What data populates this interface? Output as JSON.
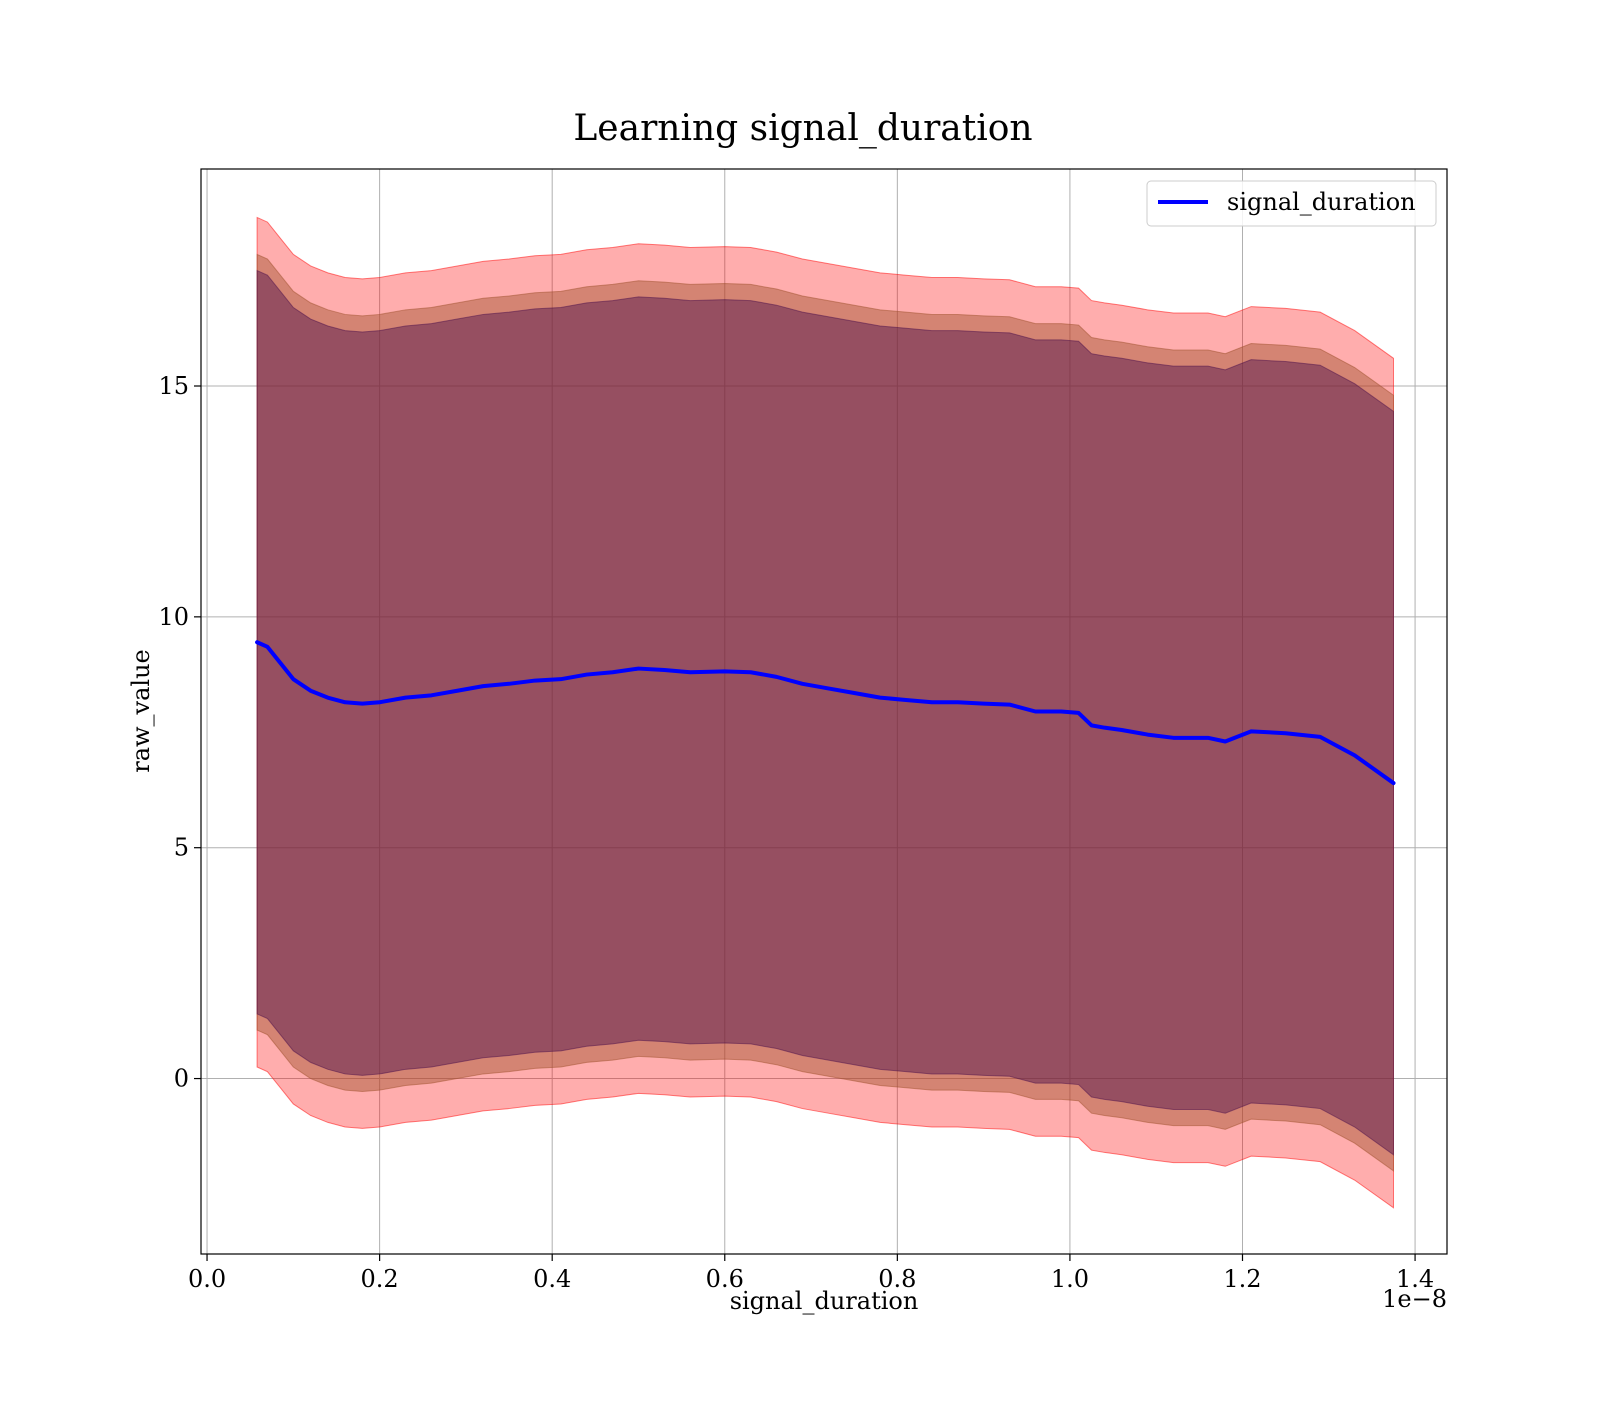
{
  "chart_data": {
    "type": "line",
    "title": "Learning signal_duration",
    "xlabel": "signal_duration",
    "ylabel": "raw_value",
    "x_offset_text": "1e−8",
    "xlim": [
      -0.007,
      1.437
    ],
    "ylim": [
      -3.8,
      19.7
    ],
    "x_ticks": [
      0.0,
      0.2,
      0.4,
      0.6,
      0.8,
      1.0,
      1.2,
      1.4
    ],
    "x_tick_labels": [
      "0.0",
      "0.2",
      "0.4",
      "0.6",
      "0.8",
      "1.0",
      "1.2",
      "1.4"
    ],
    "y_ticks": [
      0,
      5,
      10,
      15
    ],
    "y_tick_labels": [
      "0",
      "5",
      "10",
      "15"
    ],
    "grid": true,
    "legend": {
      "position": "top-right",
      "entries": [
        "signal_duration"
      ]
    },
    "colors": {
      "line": "#0000ff",
      "outer_band": "#ff0000",
      "middle_band": "#a0522d",
      "inner_band": "#4b0f4b",
      "grid": "#b0b0b0"
    },
    "x": [
      0.058,
      0.07,
      0.085,
      0.1,
      0.12,
      0.14,
      0.16,
      0.18,
      0.2,
      0.23,
      0.26,
      0.29,
      0.32,
      0.35,
      0.38,
      0.41,
      0.44,
      0.47,
      0.5,
      0.53,
      0.56,
      0.6,
      0.63,
      0.66,
      0.69,
      0.72,
      0.75,
      0.78,
      0.81,
      0.84,
      0.87,
      0.9,
      0.93,
      0.96,
      0.99,
      1.01,
      1.025,
      1.04,
      1.06,
      1.09,
      1.12,
      1.16,
      1.18,
      1.21,
      1.25,
      1.29,
      1.33,
      1.375
    ],
    "series": [
      {
        "name": "signal_duration",
        "values": [
          9.45,
          9.35,
          9.0,
          8.65,
          8.4,
          8.25,
          8.15,
          8.12,
          8.15,
          8.25,
          8.3,
          8.4,
          8.5,
          8.55,
          8.62,
          8.65,
          8.75,
          8.8,
          8.88,
          8.85,
          8.8,
          8.82,
          8.8,
          8.7,
          8.55,
          8.45,
          8.35,
          8.25,
          8.2,
          8.15,
          8.15,
          8.12,
          8.1,
          7.95,
          7.95,
          7.92,
          7.65,
          7.6,
          7.55,
          7.45,
          7.38,
          7.38,
          7.3,
          7.52,
          7.48,
          7.4,
          7.0,
          6.4
        ]
      }
    ],
    "bands": [
      {
        "offset": 9.2
      },
      {
        "offset": 8.4
      },
      {
        "offset": 8.05
      }
    ]
  }
}
